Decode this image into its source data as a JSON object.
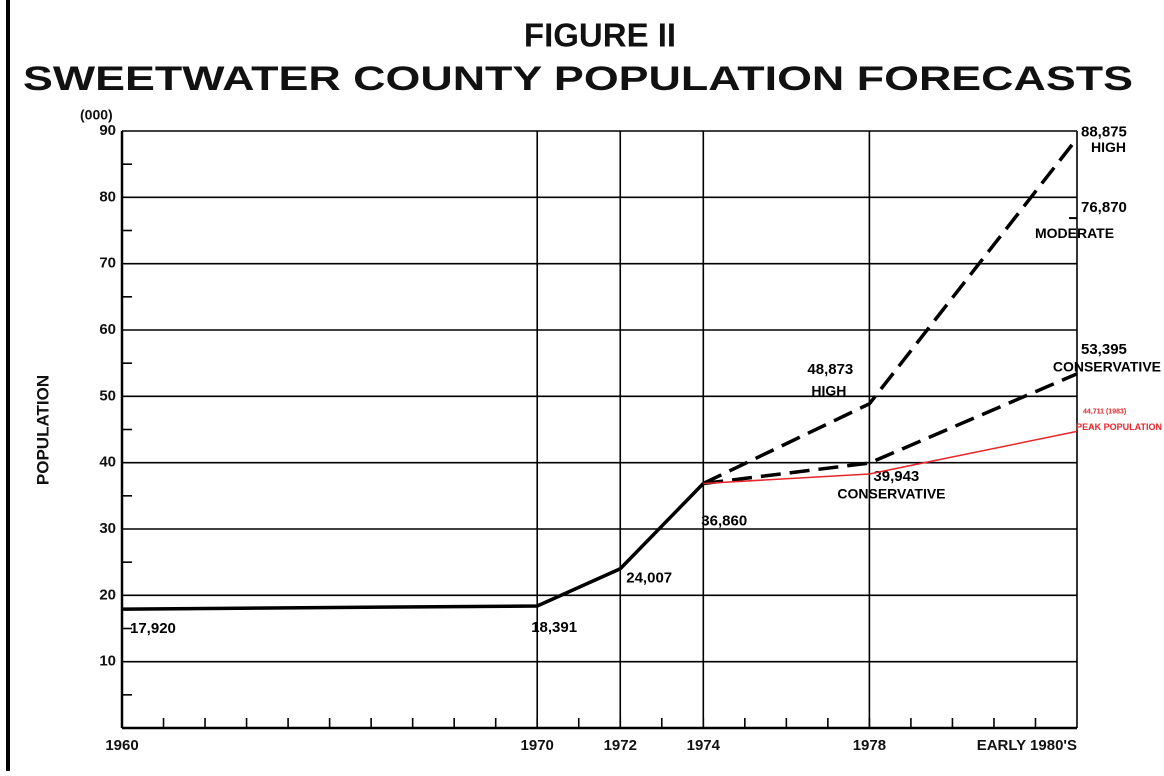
{
  "chart_data": {
    "type": "line",
    "title": "FIGURE II",
    "subtitle": "SWEETWATER COUNTY POPULATION FORECASTS",
    "y_unit": "(000)",
    "y_label": "POPULATION",
    "xlim": [
      1960,
      1983
    ],
    "xticks": [
      1960,
      1970,
      1972,
      1974,
      1978,
      {
        "value": 1983,
        "label": "EARLY 1980'S"
      }
    ],
    "ylim": [
      0,
      90
    ],
    "yticks": [
      10,
      20,
      30,
      40,
      50,
      60,
      70,
      80,
      90
    ],
    "grid": true,
    "series": [
      {
        "color": "#000000",
        "line_style": "solid",
        "x": [
          1960,
          1970,
          1972,
          1974
        ],
        "values": [
          17.92,
          18.391,
          24.007,
          36.86
        ],
        "value_labels": [
          "17,920",
          "18,391",
          "24,007",
          "36,860"
        ]
      },
      {
        "name": "HIGH",
        "color": "#000000",
        "line_style": "dashed",
        "x": [
          1974,
          1978,
          1983
        ],
        "values": [
          36.86,
          48.873,
          88.875
        ],
        "value_labels": [
          null,
          "48,873",
          "88,875"
        ]
      },
      {
        "name": "MODERATE",
        "color": "#000000",
        "line_style": "tick",
        "x": [
          1983
        ],
        "values": [
          76.87
        ],
        "value_labels": [
          "76,870"
        ]
      },
      {
        "name": "CONSERVATIVE",
        "color": "#000000",
        "line_style": "dashed",
        "x": [
          1974,
          1978,
          1983
        ],
        "values": [
          36.86,
          39.943,
          53.395
        ],
        "value_labels": [
          null,
          "39,943",
          "53,395"
        ]
      },
      {
        "name": "PEAK POPULATION",
        "color": "#e8252a",
        "line_style": "solid",
        "x": [
          1974,
          1978,
          1983
        ],
        "values": [
          36.86,
          38.3,
          44.711
        ],
        "value_labels": [
          null,
          null,
          "44,711 (1983)"
        ]
      }
    ]
  }
}
